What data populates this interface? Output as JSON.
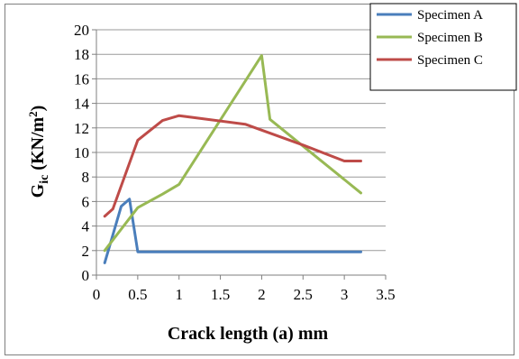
{
  "chart_data": {
    "type": "line",
    "xlabel": "Crack length (a) mm",
    "ylabel_main": "G",
    "ylabel_sub": "ic",
    "ylabel_unit": " (KN/m",
    "ylabel_sup": "2",
    "ylabel_close": ")",
    "xlim": [
      0,
      3.5
    ],
    "ylim": [
      0,
      20
    ],
    "x_ticks": [
      "0",
      "0.5",
      "1",
      "1.5",
      "2",
      "2.5",
      "3",
      "3.5"
    ],
    "y_ticks": [
      "0",
      "2",
      "4",
      "6",
      "8",
      "10",
      "12",
      "14",
      "16",
      "18",
      "20"
    ],
    "grid": true,
    "legend_position": "top-right",
    "series": [
      {
        "name": "Specimen A",
        "color": "#4a7ebb",
        "points": [
          [
            0.1,
            1.0
          ],
          [
            0.3,
            5.6
          ],
          [
            0.4,
            6.2
          ],
          [
            0.5,
            1.9
          ],
          [
            3.2,
            1.9
          ]
        ]
      },
      {
        "name": "Specimen B",
        "color": "#98b954",
        "points": [
          [
            0.1,
            2.0
          ],
          [
            0.5,
            5.5
          ],
          [
            0.8,
            6.6
          ],
          [
            1.0,
            7.4
          ],
          [
            2.0,
            17.9
          ],
          [
            2.1,
            12.7
          ],
          [
            3.2,
            6.7
          ]
        ]
      },
      {
        "name": "Specimen C",
        "color": "#be4b48",
        "points": [
          [
            0.1,
            4.8
          ],
          [
            0.2,
            5.4
          ],
          [
            0.5,
            11.0
          ],
          [
            0.8,
            12.6
          ],
          [
            1.0,
            13.0
          ],
          [
            1.8,
            12.3
          ],
          [
            2.5,
            10.6
          ],
          [
            3.0,
            9.3
          ],
          [
            3.2,
            9.3
          ]
        ]
      }
    ]
  }
}
